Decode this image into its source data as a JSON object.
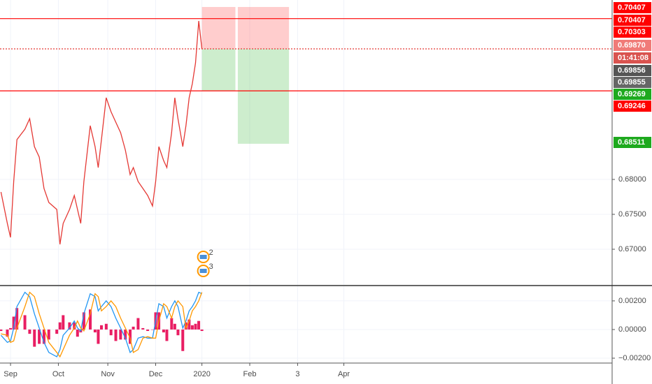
{
  "chart_data": [
    {
      "type": "line",
      "x": [
        -6,
        -2,
        0,
        2,
        4,
        9,
        12,
        15,
        18,
        21,
        24,
        29,
        31,
        33,
        37,
        40,
        42,
        44,
        46,
        50,
        53,
        55,
        57,
        60,
        63,
        66,
        69,
        72,
        75,
        77,
        80,
        83,
        86,
        89,
        91,
        93,
        96,
        98,
        101,
        103,
        105,
        108,
        110,
        112,
        114,
        116,
        118,
        120
      ],
      "series": [
        {
          "color": "#e53935",
          "values": [
            0.6782,
            0.6737,
            0.6717,
            0.6797,
            0.6857,
            0.6872,
            0.6887,
            0.6847,
            0.6832,
            0.6787,
            0.6767,
            0.6757,
            0.6707,
            0.6737,
            0.6757,
            0.6777,
            0.6757,
            0.6737,
            0.6797,
            0.6877,
            0.6847,
            0.6817,
            0.6857,
            0.6917,
            0.6897,
            0.6882,
            0.6867,
            0.6842,
            0.6807,
            0.6817,
            0.6797,
            0.6787,
            0.6777,
            0.6762,
            0.6797,
            0.6847,
            0.6827,
            0.6817,
            0.6867,
            0.6917,
            0.6887,
            0.6847,
            0.6877,
            0.6917,
            0.6937,
            0.6967,
            0.7027,
            0.6987
          ]
        }
      ],
      "xlim": [
        -6.6,
        377.2
      ],
      "ylim": [
        0.6649,
        0.7057
      ],
      "yticks": [
        {
          "value": 0.67,
          "label": "0.67000"
        },
        {
          "value": 0.675,
          "label": "0.67500"
        },
        {
          "value": 0.68,
          "label": "0.68000"
        }
      ],
      "grid": true,
      "hlines": [
        {
          "value": 0.70303,
          "color": "#ff0000",
          "style": "solid"
        },
        {
          "value": 0.6987,
          "color": "#e53935",
          "style": "dotted"
        },
        {
          "value": 0.69269,
          "color": "#ff0000",
          "style": "solid"
        }
      ],
      "positions": [
        {
          "x": [
            120,
            141
          ],
          "entry": 0.6987,
          "stop": 0.7047,
          "target": 0.69269
        },
        {
          "x": [
            142.5,
            174.6
          ],
          "entry": 0.6987,
          "stop": 0.7047,
          "target": 0.68511
        }
      ],
      "price_labels": [
        {
          "label": "0.70407",
          "color": "#ff0000"
        },
        {
          "label": "0.70407",
          "color": "#ff0000"
        },
        {
          "label": "0.70303",
          "color": "#ff0000"
        },
        {
          "label": "0.69870",
          "color": "#f07b78"
        },
        {
          "label": "01:41:08",
          "color": "#d9534f"
        },
        {
          "label": "0.69856",
          "color": "#555555"
        },
        {
          "label": "0.69855",
          "color": "#666666"
        },
        {
          "label": "0.69269",
          "color": "#1ea91e"
        },
        {
          "label": "0.69246",
          "color": "#ff0000"
        },
        {
          "label": "0.68511",
          "color": "#1ea91e"
        }
      ],
      "events": [
        "2",
        "3"
      ]
    },
    {
      "type": "macd",
      "x": [
        -6,
        -2,
        0,
        2,
        4,
        9,
        12,
        15,
        18,
        21,
        24,
        29,
        31,
        33,
        37,
        40,
        42,
        44,
        46,
        50,
        53,
        55,
        57,
        60,
        63,
        66,
        69,
        72,
        75,
        77,
        80,
        83,
        86,
        89,
        91,
        93,
        96,
        98,
        101,
        103,
        105,
        108,
        110,
        112,
        114,
        116,
        118,
        120
      ],
      "series": [
        {
          "color": "#2196f3",
          "values": [
            -0.0004,
            -0.0009,
            -0.0008,
            0.0001,
            0.0016,
            0.0026,
            0.0023,
            0.0011,
            0.0001,
            -0.0009,
            -0.0016,
            -0.0019,
            -0.0014,
            -0.0004,
            0.0001,
            0.0006,
            0.0001,
            -0.0001,
            0.0011,
            0.0025,
            0.0023,
            0.0013,
            0.0016,
            0.002,
            0.0016,
            0.0008,
            0.0001,
            -0.0006,
            -0.0016,
            -0.0014,
            -0.0006,
            -0.0005,
            -0.0006,
            -0.0006,
            0.0006,
            0.0018,
            0.0016,
            0.0008,
            0.0016,
            0.002,
            0.0016,
            0.0001,
            0.0006,
            0.0013,
            0.0016,
            0.002,
            0.0026,
            0.0025
          ]
        },
        {
          "color": "#ff9800",
          "values": [
            -0.0003,
            -0.0004,
            -0.0009,
            -0.0008,
            0.0001,
            0.0016,
            0.0026,
            0.0023,
            0.0011,
            0.0001,
            -0.0009,
            -0.0016,
            -0.0019,
            -0.0014,
            -0.0004,
            0.0001,
            0.0006,
            0.0001,
            -0.0001,
            0.0011,
            0.0025,
            0.0023,
            0.0013,
            0.0016,
            0.002,
            0.0016,
            0.0008,
            0.0001,
            -0.0006,
            -0.0016,
            -0.0014,
            -0.0006,
            -0.0005,
            -0.0006,
            -0.0006,
            0.0006,
            0.0018,
            0.0016,
            0.0008,
            0.0016,
            0.002,
            0.0016,
            0.0001,
            0.0006,
            0.0013,
            0.0016,
            0.002,
            0.0026
          ]
        },
        {
          "color": "#e91e63",
          "style": "histogram",
          "values": [
            -0.0001,
            -0.0005,
            0.0001,
            0.0009,
            0.0015,
            0.001,
            -0.0003,
            -0.0012,
            -0.001,
            -0.001,
            -0.0007,
            -0.0003,
            0.0005,
            0.001,
            0.0005,
            0.0005,
            -0.0005,
            -0.0002,
            0.0012,
            0.0014,
            -0.0002,
            -0.001,
            0.0003,
            0.0004,
            -0.0004,
            -0.0008,
            -0.0007,
            -0.0007,
            -0.001,
            0.0002,
            0.0008,
            0.0001,
            -0.0001,
            0,
            0.0012,
            0.0012,
            -0.0002,
            -0.0008,
            0.0008,
            0.0004,
            -0.0004,
            -0.0015,
            0.0005,
            0.0007,
            0.0003,
            0.0004,
            0.0006,
            -0.0001
          ]
        }
      ],
      "xlim": [
        -6.6,
        377.2
      ],
      "ylim": [
        -0.00234,
        0.00302
      ],
      "yticks": [
        {
          "value": -0.002,
          "label": "−0.00200"
        },
        {
          "value": 0,
          "label": "0.00000"
        },
        {
          "value": 0.002,
          "label": "0.00200"
        }
      ],
      "xticks": [
        {
          "value": 0,
          "label": "Sep"
        },
        {
          "value": 30,
          "label": "Oct"
        },
        {
          "value": 61,
          "label": "Nov"
        },
        {
          "value": 91,
          "label": "Dec"
        },
        {
          "value": 120,
          "label": "2020"
        },
        {
          "value": 150,
          "label": "Feb"
        },
        {
          "value": 180,
          "label": "3"
        },
        {
          "value": 209,
          "label": "Apr"
        }
      ],
      "grid": true
    }
  ]
}
